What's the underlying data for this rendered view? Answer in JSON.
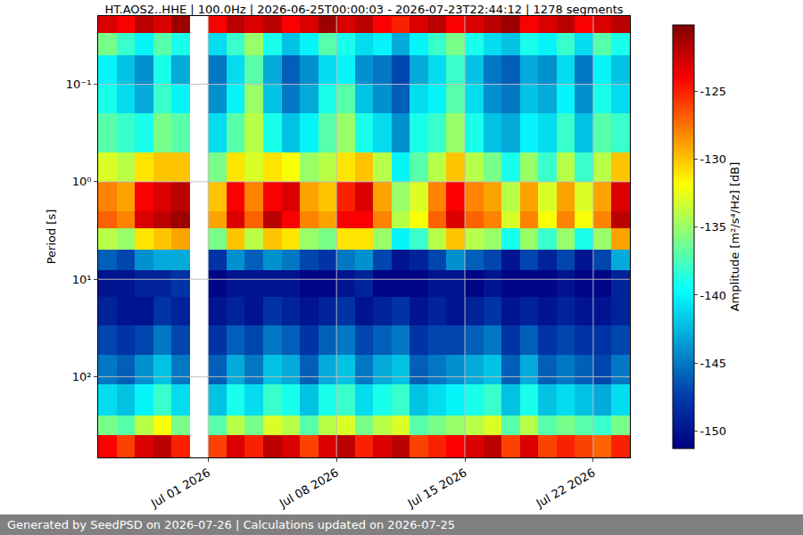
{
  "chart_data": {
    "type": "heatmap",
    "title": "HT.AOS2..HHE | 100.0Hz | 2026-06-25T00:00:03 - 2026-07-23T22:44:12 | 1278 segments",
    "y_label": "Period [s]",
    "footer": "Generated by SeedPSD on 2026-07-26 | Calculations updated on 2026-07-25",
    "log": "y",
    "grid": true,
    "xlim": [
      "2026-06-25",
      "2026-07-24"
    ],
    "xticks": [
      {
        "value": "2026-07-01",
        "label": "Jul 01 2026"
      },
      {
        "value": "2026-07-08",
        "label": "Jul 08 2026"
      },
      {
        "value": "2026-07-15",
        "label": "Jul 15 2026"
      },
      {
        "value": "2026-07-22",
        "label": "Jul 22 2026"
      }
    ],
    "ylim": [
      0.02,
      670
    ],
    "yticks": [
      {
        "value": 0.1,
        "label": "10⁻¹"
      },
      {
        "value": 1,
        "label": "10⁰"
      },
      {
        "value": 10,
        "label": "10¹"
      },
      {
        "value": 100,
        "label": "10²"
      }
    ],
    "colorbar": {
      "title": "Amplitude [m²/s⁴/Hz] [dB]",
      "zlim": [
        -151.3,
        -120.1
      ],
      "ticks": [
        -125,
        -130,
        -135,
        -140,
        -145,
        -150
      ]
    },
    "x_edges": [
      "2026-06-25",
      "2026-06-26",
      "2026-06-27",
      "2026-06-28",
      "2026-06-29",
      "2026-06-30",
      "2026-07-01",
      "2026-07-02",
      "2026-07-03",
      "2026-07-04",
      "2026-07-05",
      "2026-07-06",
      "2026-07-07",
      "2026-07-08",
      "2026-07-09",
      "2026-07-10",
      "2026-07-11",
      "2026-07-12",
      "2026-07-13",
      "2026-07-14",
      "2026-07-15",
      "2026-07-16",
      "2026-07-17",
      "2026-07-18",
      "2026-07-19",
      "2026-07-20",
      "2026-07-21",
      "2026-07-22",
      "2026-07-23",
      "2026-07-24"
    ],
    "period_edges": [
      0.02,
      0.03,
      0.05,
      0.1,
      0.2,
      0.5,
      1,
      2,
      3,
      5,
      8,
      15,
      30,
      60,
      120,
      250,
      400,
      670
    ],
    "values": [
      [
        -123,
        -124,
        -122,
        -123,
        -121,
        null,
        -124,
        -122,
        -123,
        -122,
        -124,
        -123,
        -121,
        -123,
        -122,
        -124,
        -125,
        -123,
        -122,
        -124,
        -123,
        -122,
        -121,
        -124,
        -123,
        -122,
        -124,
        -123,
        -122
      ],
      [
        -136,
        -138,
        -140,
        -137,
        -139,
        null,
        -141,
        -138,
        -135,
        -139,
        -142,
        -140,
        -137,
        -139,
        -141,
        -140,
        -143,
        -140,
        -138,
        -136,
        -139,
        -141,
        -142,
        -139,
        -140,
        -138,
        -141,
        -137,
        -139
      ],
      [
        -140,
        -142,
        -144,
        -139,
        -143,
        null,
        -145,
        -141,
        -137,
        -143,
        -146,
        -144,
        -141,
        -140,
        -144,
        -145,
        -147,
        -143,
        -141,
        -138,
        -142,
        -145,
        -146,
        -143,
        -144,
        -141,
        -145,
        -140,
        -142
      ],
      [
        -139,
        -141,
        -143,
        -138,
        -140,
        null,
        -144,
        -140,
        -135,
        -142,
        -145,
        -143,
        -139,
        -137,
        -142,
        -144,
        -146,
        -141,
        -140,
        -137,
        -141,
        -144,
        -145,
        -142,
        -143,
        -140,
        -144,
        -139,
        -141
      ],
      [
        -137,
        -138,
        -139,
        -136,
        -137,
        null,
        -141,
        -137,
        -134,
        -139,
        -142,
        -140,
        -137,
        -135,
        -139,
        -141,
        -144,
        -139,
        -138,
        -135,
        -139,
        -142,
        -143,
        -140,
        -141,
        -138,
        -142,
        -137,
        -138
      ],
      [
        -133,
        -134,
        -131,
        -130,
        -130,
        null,
        -136,
        -131,
        -133,
        -131,
        -132,
        -135,
        -134,
        -131,
        -130,
        -134,
        -140,
        -137,
        -134,
        -130,
        -134,
        -136,
        -139,
        -135,
        -138,
        -134,
        -138,
        -134,
        -130
      ],
      [
        -128,
        -129,
        -124,
        -123,
        -122,
        null,
        -130,
        -124,
        -128,
        -124,
        -123,
        -129,
        -130,
        -125,
        -123,
        -129,
        -135,
        -133,
        -128,
        -124,
        -128,
        -129,
        -134,
        -129,
        -133,
        -129,
        -133,
        -129,
        -123
      ],
      [
        -127,
        -128,
        -123,
        -122,
        -121,
        null,
        -129,
        -123,
        -127,
        -122,
        -124,
        -128,
        -129,
        -124,
        -124,
        -128,
        -134,
        -132,
        -127,
        -123,
        -127,
        -128,
        -133,
        -128,
        -132,
        -128,
        -132,
        -128,
        -122
      ],
      [
        -134,
        -135,
        -131,
        -130,
        -129,
        null,
        -136,
        -130,
        -134,
        -130,
        -131,
        -135,
        -136,
        -131,
        -131,
        -135,
        -140,
        -138,
        -134,
        -130,
        -134,
        -135,
        -139,
        -135,
        -138,
        -135,
        -139,
        -135,
        -129
      ],
      [
        -146,
        -147,
        -144,
        -143,
        -143,
        null,
        -148,
        -144,
        -146,
        -144,
        -145,
        -147,
        -148,
        -145,
        -144,
        -147,
        -150,
        -149,
        -147,
        -144,
        -146,
        -147,
        -150,
        -147,
        -149,
        -147,
        -150,
        -147,
        -143
      ],
      [
        -150,
        -150,
        -149,
        -149,
        -148,
        null,
        -151,
        -150,
        -150,
        -150,
        -150,
        -151,
        -151,
        -150,
        -149,
        -151,
        -151,
        -151,
        -150,
        -150,
        -151,
        -150,
        -151,
        -151,
        -151,
        -150,
        -151,
        -151,
        -149
      ],
      [
        -149,
        -150,
        -150,
        -148,
        -149,
        null,
        -150,
        -149,
        -150,
        -148,
        -149,
        -150,
        -149,
        -148,
        -150,
        -149,
        -148,
        -150,
        -149,
        -150,
        -149,
        -148,
        -150,
        -149,
        -150,
        -149,
        -150,
        -150,
        -149
      ],
      [
        -147,
        -148,
        -147,
        -145,
        -147,
        null,
        -148,
        -146,
        -147,
        -145,
        -146,
        -148,
        -146,
        -145,
        -147,
        -146,
        -145,
        -148,
        -147,
        -147,
        -146,
        -145,
        -148,
        -146,
        -148,
        -147,
        -148,
        -148,
        -147
      ],
      [
        -145,
        -146,
        -144,
        -142,
        -145,
        null,
        -146,
        -143,
        -145,
        -142,
        -143,
        -146,
        -143,
        -142,
        -145,
        -143,
        -142,
        -146,
        -145,
        -144,
        -143,
        -142,
        -146,
        -143,
        -146,
        -145,
        -146,
        -147,
        -145
      ],
      [
        -141,
        -142,
        -140,
        -138,
        -141,
        null,
        -142,
        -139,
        -141,
        -138,
        -139,
        -142,
        -139,
        -138,
        -141,
        -139,
        -138,
        -142,
        -141,
        -140,
        -139,
        -138,
        -142,
        -139,
        -142,
        -141,
        -142,
        -143,
        -141
      ],
      [
        -136,
        -137,
        -134,
        -132,
        -136,
        null,
        -137,
        -134,
        -136,
        -133,
        -134,
        -137,
        -134,
        -133,
        -136,
        -134,
        -133,
        -137,
        -136,
        -135,
        -134,
        -133,
        -137,
        -134,
        -137,
        -136,
        -137,
        -138,
        -136
      ],
      [
        -124,
        -126,
        -123,
        -122,
        -125,
        null,
        -126,
        -123,
        -125,
        -122,
        -123,
        -126,
        -123,
        -122,
        -125,
        -123,
        -122,
        -126,
        -125,
        -124,
        -123,
        -122,
        -126,
        -123,
        -126,
        -125,
        -126,
        -127,
        -125
      ]
    ]
  }
}
